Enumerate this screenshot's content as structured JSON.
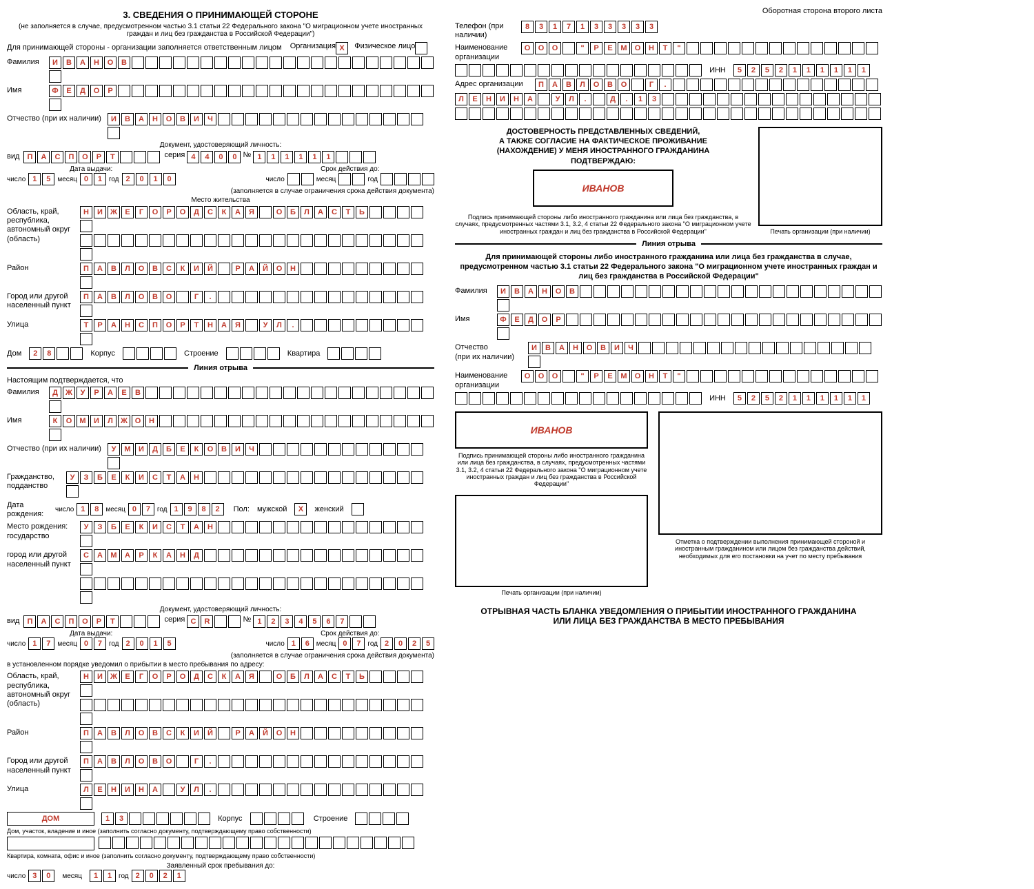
{
  "meta": {
    "backside": "Оборотная сторона второго листа"
  },
  "section3": {
    "title": "3. СВЕДЕНИЯ О ПРИНИМАЮЩЕЙ СТОРОНЕ",
    "subtitle": "(не заполняется в случае, предусмотренном частью 3.1 статьи 22 Федерального закона \"О миграционном учете иностранных граждан и лиц без гражданства в Российской Федерации\")",
    "org_line": "Для принимающей стороны - организации заполняется ответственным лицом",
    "org_label": "Организация",
    "org_checked": "X",
    "phys_label": "Физическое лицо",
    "surname_label": "Фамилия",
    "surname": "ИВАНОВ",
    "name_label": "Имя",
    "name": "ФЕДОР",
    "patr_label": "Отчество (при их наличии)",
    "patr": "ИВАНОВИЧ",
    "doc_header": "Документ, удостоверяющий личность:",
    "vid_label": "вид",
    "vid": "ПАСПОРТ",
    "series_label": "серия",
    "series": "4400",
    "num_label": "№",
    "num": "111111",
    "issue_hdr": "Дата выдачи:",
    "valid_hdr": "Срок действия до:",
    "day_label": "число",
    "month_label": "месяц",
    "year_label": "год",
    "issue_day": "15",
    "issue_month": "01",
    "issue_year": "2010",
    "valid_note": "(заполняется в случае ограничения срока действия документа)",
    "residence_hdr": "Место жительства",
    "region_label": "Область, край, республика, автономный округ (область)",
    "region": "НИЖЕГОРОДСКАЯ ОБЛАСТЬ",
    "district_label": "Район",
    "district": "ПАВЛОВСКИЙ РАЙОН",
    "city_label": "Город или другой населенный пункт",
    "city": "ПАВЛОВО Г.",
    "street_label": "Улица",
    "street": "ТРАНСПОРТНАЯ УЛ.",
    "house_label": "Дом",
    "house": "28",
    "korpus_label": "Корпус",
    "stroenie_label": "Строение",
    "kvartira_label": "Квартира"
  },
  "tear": "Линия отрыва",
  "stub1": {
    "confirm": "Настоящим подтверждается, что",
    "surname_label": "Фамилия",
    "surname": "ДЖУРАЕВ",
    "name_label": "Имя",
    "name": "КОМИЛЖОН",
    "patr_label": "Отчество (при их наличии)",
    "patr": "УМИДБЕКОВИЧ",
    "citiz_label": "Гражданство, подданство",
    "citizenship": "УЗБЕКИСТАН",
    "birth_label": "Дата рождения:",
    "birth_day": "18",
    "birth_month": "07",
    "birth_year": "1982",
    "sex_label": "Пол:",
    "sex_m": "мужской",
    "sex_m_val": "X",
    "sex_f": "женский",
    "pob_label": "Место рождения: государство",
    "pob_state": "УЗБЕКИСТАН",
    "pob_city_label": "город или другой населенный пункт",
    "pob_city": "САМАРКАНД",
    "doc_header": "Документ, удостоверяющий личность:",
    "vid": "ПАСПОРТ",
    "series": "CR",
    "num": "1234567",
    "issue_day": "17",
    "issue_month": "07",
    "issue_year": "2015",
    "valid_day": "16",
    "valid_month": "07",
    "valid_year": "2025",
    "arrival_note": "в установленном порядке уведомил о прибытии в место пребывания по адресу:",
    "region": "НИЖЕГОРОДСКАЯ ОБЛАСТЬ",
    "district": "ПАВЛОВСКИЙ РАЙОН",
    "city": "ПАВЛОВО Г.",
    "street": "ЛЕНИНА УЛ.",
    "dom": "ДОМ",
    "dom_num": "13",
    "dom_note": "Дом, участок, владение и иное (заполнить согласно документу, подтверждающему право собственности)",
    "apt_note": "Квартира, комната, офис и иное (заполнить согласно документу, подтверждающему право собственности)",
    "stay_label": "Заявленный срок пребывания до:",
    "stay_day": "30",
    "stay_month": "11",
    "stay_year": "2021"
  },
  "right": {
    "phone_label": "Телефон (при наличии)",
    "phone": "8317133333",
    "org_name_label": "Наименование организации",
    "org_name": "ООО \"РЕМОНТ\"",
    "inn_label": "ИНН",
    "inn": "5252111111",
    "addr_label": "Адрес организации",
    "addr1": "ПАВЛОВО Г.",
    "addr2": "ЛЕНИНА УЛ. Д.13",
    "conf1": "ДОСТОВЕРНОСТЬ ПРЕДСТАВЛЕННЫХ СВЕДЕНИЙ,",
    "conf2": "А ТАКЖЕ СОГЛАСИЕ НА ФАКТИЧЕСКОЕ ПРОЖИВАНИЕ",
    "conf3": "(НАХОЖДЕНИЕ) У МЕНЯ ИНОСТРАННОГО ГРАЖДАНИНА",
    "conf4": "ПОДТВЕРЖДАЮ:",
    "signature": "ИВАНОВ",
    "sig_note": "Подпись принимающей стороны либо иностранного гражданина или лица без гражданства, в случаях, предусмотренных частями 3.1, 3.2, 4 статьи 22 Федерального закона \"О миграционном учете иностранных граждан и лиц без гражданства в Российской Федерации\"",
    "stamp_label": "Печать организации (при наличии)"
  },
  "stub2": {
    "header": "Для принимающей стороны либо иностранного гражданина или лица без гражданства в случае, предусмотренном частью 3.1 статьи 22 Федерального закона \"О миграционном учете иностранных граждан и лиц без гражданства в Российской Федерации\"",
    "surname": "ИВАНОВ",
    "name": "ФЕДОР",
    "patr": "ИВАНОВИЧ",
    "org_name": "ООО \"РЕМОНТ\"",
    "inn": "5252111111",
    "signature": "ИВАНОВ",
    "sig_note": "Подпись принимающей стороны либо иностранного гражданина или лица без гражданства, в случаях, предусмотренных частями 3.1, 3.2, 4 статьи 22 Федерального закона \"О миграционном учете иностранных граждан и лиц без гражданства в Российской Федерации\"",
    "mark_note": "Отметка о подтверждении выполнения принимающей стороной и иностранным гражданином или лицом без гражданства действий, необходимых для его постановки на учет по месту пребывания",
    "stamp_label": "Печать организации (при наличии)",
    "footer1": "ОТРЫВНАЯ ЧАСТЬ БЛАНКА УВЕДОМЛЕНИЯ О ПРИБЫТИИ ИНОСТРАННОГО ГРАЖДАНИНА",
    "footer2": "ИЛИ ЛИЦА БЕЗ ГРАЖДАНСТВА В МЕСТО ПРЕБЫВАНИЯ"
  }
}
